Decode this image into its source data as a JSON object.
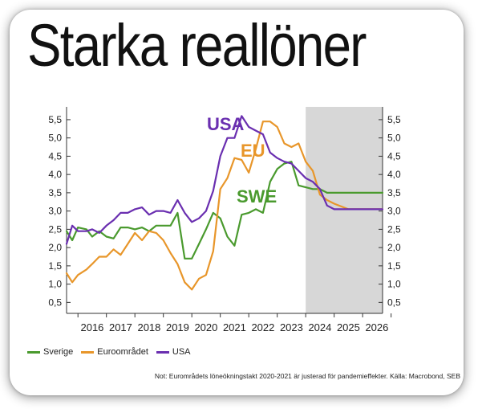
{
  "title": "Starka reallöner",
  "note": "Not: Eurområdets löneökningstakt 2020-2021 är justerad för pandemieffekter. Källa: Macrobond, SEB",
  "colors": {
    "sverige": "#4a9a2e",
    "euro": "#e8962a",
    "usa": "#6a2fb0",
    "forecast_shade": "#d7d7d7"
  },
  "chart_data": {
    "type": "line",
    "x_ticks": [
      "2016",
      "2017",
      "2018",
      "2019",
      "2020",
      "2021",
      "2022",
      "2023",
      "2024",
      "2025",
      "2026"
    ],
    "y_ticks": [
      "0,5",
      "1,0",
      "1,5",
      "2,0",
      "2,5",
      "3,0",
      "3,5",
      "4,0",
      "4,5",
      "5,0",
      "5,5"
    ],
    "xlim": [
      2015.6,
      2026.7
    ],
    "ylim": [
      0.2,
      5.85
    ],
    "forecast_start": 2024.0,
    "annotations": [
      {
        "text": "USA",
        "series": "usa"
      },
      {
        "text": "EU",
        "series": "euro"
      },
      {
        "text": "SWE",
        "series": "sverige"
      }
    ],
    "series": [
      {
        "name": "Sverige",
        "key": "sverige",
        "x": [
          2015.6,
          2015.8,
          2016.0,
          2016.3,
          2016.5,
          2016.75,
          2017.0,
          2017.25,
          2017.5,
          2017.75,
          2018.0,
          2018.25,
          2018.5,
          2018.75,
          2019.0,
          2019.25,
          2019.5,
          2019.75,
          2020.0,
          2020.25,
          2020.5,
          2020.75,
          2021.0,
          2021.25,
          2021.5,
          2021.75,
          2022.0,
          2022.25,
          2022.5,
          2022.75,
          2023.0,
          2023.25,
          2023.5,
          2023.75,
          2024.0,
          2024.25,
          2024.5,
          2024.75,
          2025.0,
          2025.5,
          2026.0,
          2026.7
        ],
        "y": [
          2.45,
          2.2,
          2.55,
          2.5,
          2.3,
          2.45,
          2.3,
          2.25,
          2.55,
          2.55,
          2.5,
          2.55,
          2.45,
          2.6,
          2.6,
          2.6,
          2.95,
          1.7,
          1.7,
          2.1,
          2.5,
          2.95,
          2.8,
          2.3,
          2.05,
          2.9,
          2.95,
          3.05,
          2.95,
          3.8,
          4.15,
          4.3,
          4.35,
          3.7,
          3.65,
          3.6,
          3.6,
          3.5,
          3.5,
          3.5,
          3.5,
          3.5
        ]
      },
      {
        "name": "Euroområdet",
        "key": "euro",
        "x": [
          2015.6,
          2015.8,
          2016.0,
          2016.3,
          2016.5,
          2016.75,
          2017.0,
          2017.25,
          2017.5,
          2017.75,
          2018.0,
          2018.25,
          2018.5,
          2018.75,
          2019.0,
          2019.25,
          2019.5,
          2019.75,
          2020.0,
          2020.25,
          2020.5,
          2020.75,
          2021.0,
          2021.25,
          2021.5,
          2021.75,
          2022.0,
          2022.25,
          2022.5,
          2022.75,
          2023.0,
          2023.25,
          2023.5,
          2023.75,
          2024.0,
          2024.25,
          2024.5,
          2024.75,
          2025.0,
          2025.5,
          2026.0,
          2026.7
        ],
        "y": [
          1.3,
          1.05,
          1.25,
          1.4,
          1.55,
          1.75,
          1.75,
          1.95,
          1.8,
          2.1,
          2.4,
          2.2,
          2.45,
          2.4,
          2.2,
          1.85,
          1.55,
          1.05,
          0.85,
          1.15,
          1.25,
          1.9,
          3.6,
          3.9,
          4.45,
          4.4,
          4.05,
          4.7,
          5.45,
          5.45,
          5.3,
          4.85,
          4.75,
          4.85,
          4.35,
          4.1,
          3.45,
          3.3,
          3.2,
          3.05,
          3.05,
          3.05
        ]
      },
      {
        "name": "USA",
        "key": "usa",
        "x": [
          2015.6,
          2015.8,
          2016.0,
          2016.3,
          2016.5,
          2016.75,
          2017.0,
          2017.25,
          2017.5,
          2017.75,
          2018.0,
          2018.25,
          2018.5,
          2018.75,
          2019.0,
          2019.25,
          2019.5,
          2019.75,
          2020.0,
          2020.25,
          2020.5,
          2020.75,
          2021.0,
          2021.25,
          2021.5,
          2021.75,
          2022.0,
          2022.25,
          2022.5,
          2022.75,
          2023.0,
          2023.25,
          2023.5,
          2023.75,
          2024.0,
          2024.25,
          2024.5,
          2024.75,
          2025.0,
          2025.5,
          2026.0,
          2026.7
        ],
        "y": [
          2.1,
          2.6,
          2.45,
          2.45,
          2.5,
          2.4,
          2.6,
          2.75,
          2.95,
          2.95,
          3.05,
          3.1,
          2.9,
          3.0,
          3.0,
          2.95,
          3.3,
          2.95,
          2.7,
          2.8,
          3.0,
          3.55,
          4.5,
          5.0,
          5.0,
          5.6,
          5.3,
          5.2,
          5.1,
          4.6,
          4.45,
          4.35,
          4.3,
          4.1,
          3.9,
          3.8,
          3.6,
          3.15,
          3.05,
          3.05,
          3.05,
          3.05
        ]
      }
    ]
  }
}
